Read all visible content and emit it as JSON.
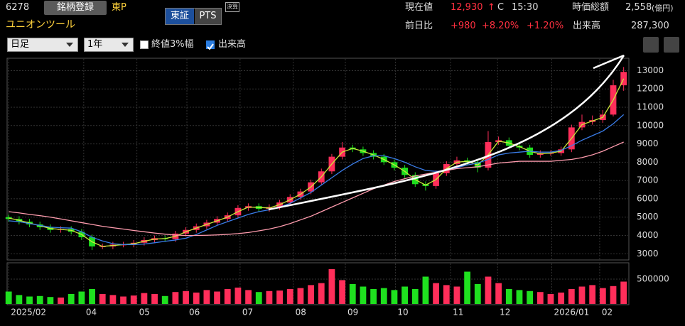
{
  "header": {
    "code": "6278",
    "register": "銘柄登録",
    "market": "東P",
    "exchange_tabs": [
      "東証",
      "PTS"
    ],
    "badge": "決算",
    "name": "ユニオンツール",
    "price_label": "現在値",
    "price": "12,930",
    "arrow": "↑",
    "price_flag": "C",
    "time": "15:30",
    "cap_label": "時価総額",
    "cap": "2,558",
    "cap_unit": "(億円)",
    "change_label": "前日比",
    "change": "+980",
    "change_pct": "+8.20%",
    "index_change": "+1.20%",
    "volume_label": "出来高",
    "volume": "287,300"
  },
  "toolbar": {
    "period": "日足",
    "range": "1年",
    "scale_option": "終値3%幅",
    "scale_checked": false,
    "volume_option": "出来高",
    "volume_checked": true
  },
  "chart_data": [
    {
      "type": "candlestick",
      "up_color": "#ff2e5a",
      "down_color": "#1fe01f",
      "xlim": [
        -0.15,
        59.5
      ],
      "ylim": [
        2700,
        13600
      ],
      "yticks": [
        3000,
        4000,
        5000,
        6000,
        7000,
        8000,
        9000,
        10000,
        11000,
        12000,
        13000
      ],
      "grid": true,
      "open": [
        5000,
        4900,
        4750,
        4600,
        4450,
        4300,
        4350,
        4200,
        3900,
        3400,
        3400,
        3500,
        3500,
        3600,
        3750,
        3850,
        3800,
        4100,
        4300,
        4500,
        4700,
        4900,
        5100,
        5500,
        5600,
        5450,
        5550,
        5800,
        6100,
        6400,
        6900,
        7500,
        8300,
        8800,
        8700,
        8500,
        8300,
        8000,
        7700,
        7300,
        6800,
        6700,
        7400,
        7900,
        8100,
        8000,
        7700,
        9100,
        9200,
        8900,
        8800,
        8400,
        8500,
        8500,
        8700,
        9900,
        10200,
        10300,
        10600,
        12200
      ],
      "high": [
        5150,
        5050,
        4900,
        4750,
        4600,
        4500,
        4500,
        4350,
        4050,
        3550,
        3650,
        3650,
        3750,
        3900,
        4000,
        4000,
        4250,
        4450,
        4650,
        4850,
        5050,
        5250,
        5650,
        5750,
        5750,
        5700,
        5950,
        6250,
        6550,
        7050,
        7650,
        8450,
        9100,
        8950,
        8850,
        8650,
        8450,
        8150,
        7850,
        7450,
        6950,
        7550,
        8050,
        8300,
        8250,
        8150,
        9700,
        9400,
        9350,
        9050,
        8950,
        8650,
        8650,
        8850,
        10050,
        10600,
        10550,
        10850,
        12500,
        13200
      ],
      "low": [
        4750,
        4600,
        4450,
        4300,
        4150,
        4150,
        4050,
        3750,
        3200,
        3250,
        3250,
        3350,
        3350,
        3450,
        3600,
        3650,
        3650,
        3950,
        4150,
        4350,
        4550,
        4750,
        4950,
        5350,
        5300,
        5300,
        5400,
        5650,
        5950,
        6250,
        6750,
        7350,
        8150,
        8550,
        8350,
        8150,
        7850,
        7550,
        7150,
        6650,
        6450,
        6550,
        7250,
        7750,
        7850,
        7450,
        7550,
        8950,
        8750,
        8650,
        8250,
        8250,
        8350,
        8350,
        8550,
        9750,
        10050,
        10150,
        10500,
        11900
      ],
      "close": [
        4900,
        4750,
        4600,
        4450,
        4300,
        4350,
        4200,
        3900,
        3400,
        3400,
        3500,
        3500,
        3600,
        3750,
        3850,
        3800,
        4100,
        4300,
        4500,
        4700,
        4900,
        5100,
        5500,
        5600,
        5450,
        5550,
        5800,
        6100,
        6400,
        6900,
        7500,
        8300,
        8800,
        8700,
        8500,
        8300,
        8000,
        7700,
        7300,
        6800,
        6700,
        7400,
        7900,
        8100,
        8000,
        7700,
        9100,
        9200,
        8900,
        8800,
        8400,
        8500,
        8500,
        8700,
        9900,
        10200,
        10300,
        10600,
        12200,
        12930
      ],
      "lines": [
        {
          "color": "#c8e83a",
          "values": [
            4950,
            4830,
            4680,
            4530,
            4380,
            4330,
            4280,
            4050,
            3650,
            3400,
            3450,
            3500,
            3550,
            3680,
            3800,
            3830,
            3950,
            4200,
            4400,
            4600,
            4800,
            5000,
            5300,
            5550,
            5530,
            5500,
            5680,
            5950,
            6250,
            6650,
            7200,
            7900,
            8550,
            8750,
            8600,
            8400,
            8150,
            7850,
            7500,
            7050,
            6750,
            7050,
            7650,
            8000,
            8050,
            7850,
            8400,
            9150,
            9050,
            8850,
            8600,
            8450,
            8500,
            8600,
            9300,
            10050,
            10250,
            10450,
            11400,
            12560
          ]
        },
        {
          "color": "#3a7ce8",
          "values": [
            4800,
            4750,
            4650,
            4550,
            4450,
            4420,
            4400,
            4200,
            3900,
            3700,
            3550,
            3500,
            3500,
            3530,
            3600,
            3680,
            3750,
            3850,
            4050,
            4300,
            4550,
            4750,
            4950,
            5150,
            5300,
            5400,
            5550,
            5750,
            6050,
            6350,
            6750,
            7150,
            7550,
            7900,
            8200,
            8350,
            8350,
            8200,
            8000,
            7750,
            7550,
            7500,
            7550,
            7700,
            7850,
            7950,
            8150,
            8400,
            8500,
            8550,
            8600,
            8550,
            8550,
            8650,
            8900,
            9200,
            9450,
            9700,
            10100,
            10600
          ]
        },
        {
          "color": "#ff9cae",
          "values": [
            5300,
            5230,
            5150,
            5080,
            5000,
            4900,
            4800,
            4700,
            4600,
            4500,
            4420,
            4350,
            4270,
            4200,
            4130,
            4070,
            4020,
            4000,
            4000,
            4010,
            4030,
            4060,
            4100,
            4160,
            4250,
            4350,
            4480,
            4650,
            4850,
            5050,
            5300,
            5550,
            5800,
            6050,
            6300,
            6550,
            6750,
            6950,
            7100,
            7250,
            7350,
            7450,
            7550,
            7650,
            7700,
            7750,
            7850,
            7950,
            8000,
            8050,
            8050,
            8050,
            8050,
            8100,
            8150,
            8250,
            8400,
            8600,
            8850,
            9100
          ]
        }
      ]
    },
    {
      "type": "bar",
      "xlim": [
        -0.15,
        59.5
      ],
      "ylim": [
        0,
        800000
      ],
      "yticks": [
        500000
      ],
      "values": [
        250000,
        180000,
        150000,
        160000,
        140000,
        130000,
        200000,
        250000,
        300000,
        200000,
        180000,
        150000,
        170000,
        220000,
        200000,
        160000,
        240000,
        260000,
        230000,
        280000,
        250000,
        300000,
        330000,
        280000,
        240000,
        260000,
        270000,
        300000,
        320000,
        380000,
        420000,
        700000,
        480000,
        400000,
        350000,
        300000,
        320000,
        280000,
        350000,
        300000,
        550000,
        420000,
        380000,
        350000,
        650000,
        400000,
        550000,
        420000,
        300000,
        280000,
        260000,
        240000,
        200000,
        230000,
        300000,
        350000,
        380000,
        320000,
        360000,
        450000
      ],
      "xticks": [
        {
          "value": 0,
          "label": "2025/02"
        },
        {
          "value": 7.2,
          "label": "04"
        },
        {
          "value": 12.3,
          "label": "05"
        },
        {
          "value": 17.1,
          "label": "06"
        },
        {
          "value": 22.2,
          "label": "07"
        },
        {
          "value": 27.3,
          "label": "08"
        },
        {
          "value": 32.3,
          "label": "09"
        },
        {
          "value": 37.1,
          "label": "10"
        },
        {
          "value": 42.4,
          "label": "11"
        },
        {
          "value": 46.9,
          "label": "12"
        },
        {
          "value": 52.1,
          "label": "2026/01"
        },
        {
          "value": 56.7,
          "label": "02"
        }
      ]
    }
  ]
}
